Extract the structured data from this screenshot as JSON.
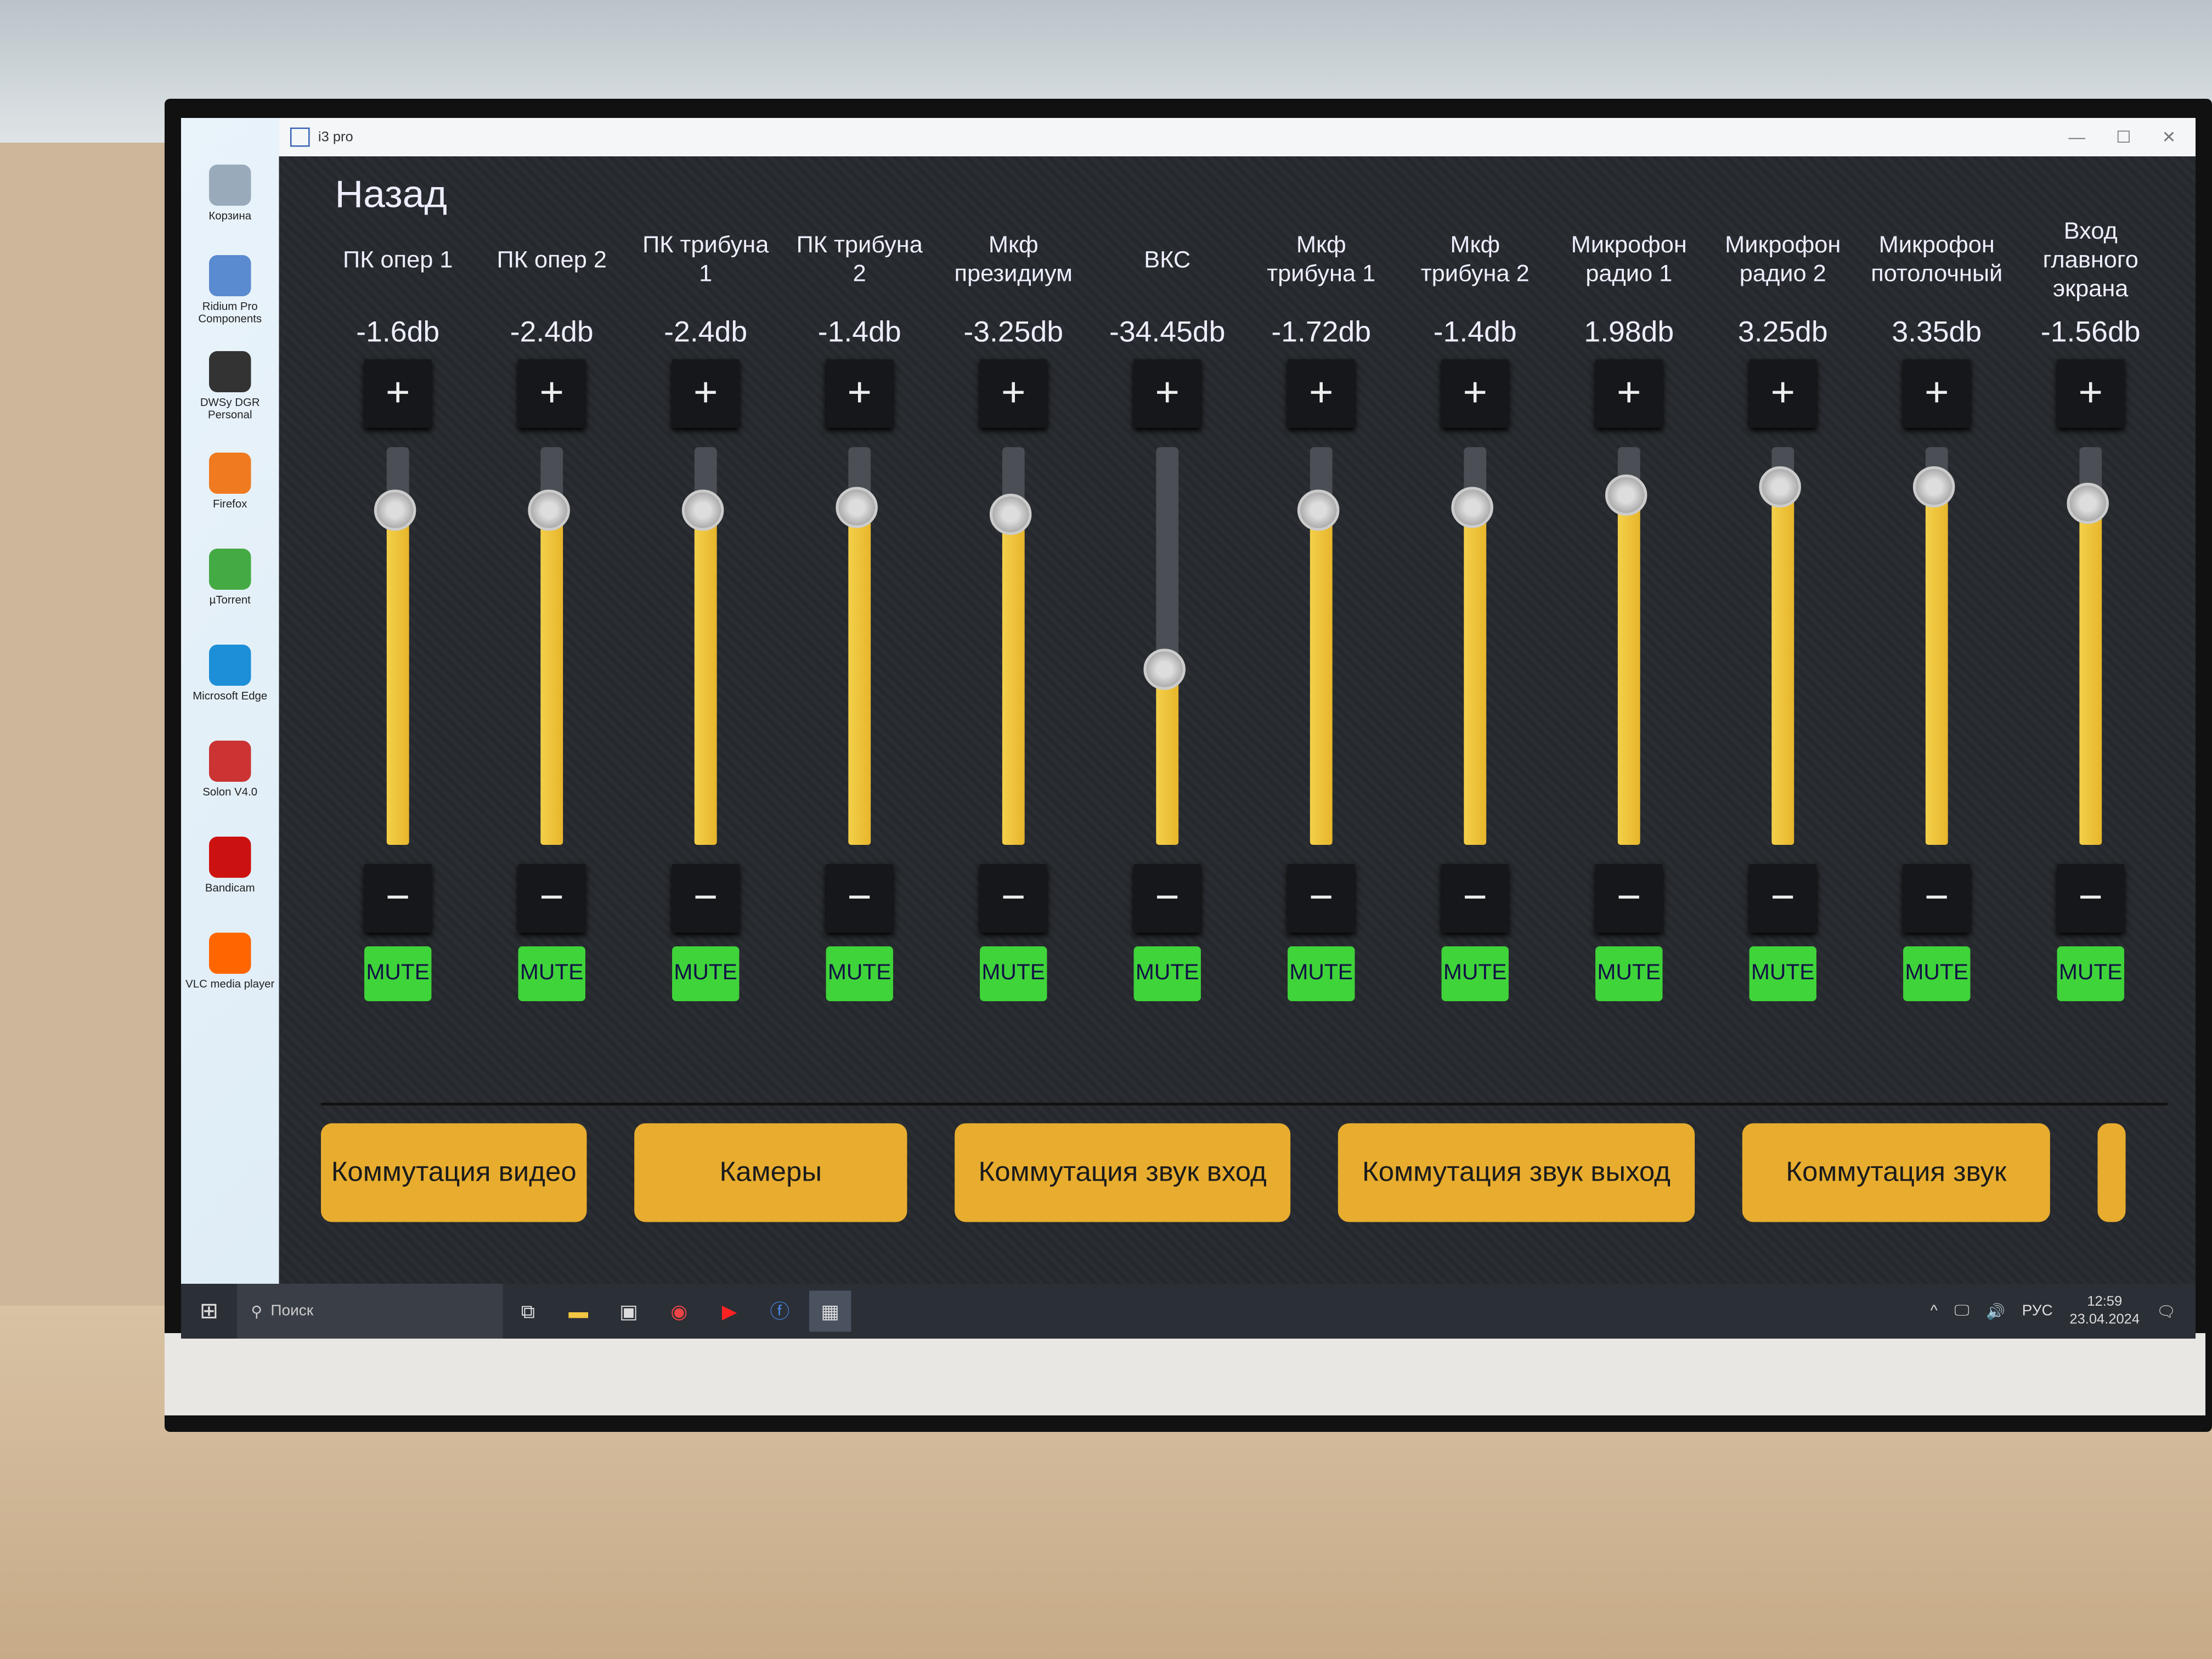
{
  "window": {
    "title": "i3 pro"
  },
  "app": {
    "back_label": "Назад",
    "channels": [
      {
        "label": "ПК опер 1",
        "value": "-1.6db",
        "level": 0.84
      },
      {
        "label": "ПК опер 2",
        "value": "-2.4db",
        "level": 0.84
      },
      {
        "label": "ПК трибуна 1",
        "value": "-2.4db",
        "level": 0.84
      },
      {
        "label": "ПК трибуна 2",
        "value": "-1.4db",
        "level": 0.85
      },
      {
        "label": "Мкф президиум",
        "value": "-3.25db",
        "level": 0.83
      },
      {
        "label": "ВКС",
        "value": "-34.45db",
        "level": 0.44
      },
      {
        "label": "Мкф трибуна 1",
        "value": "-1.72db",
        "level": 0.84
      },
      {
        "label": "Мкф трибуна 2",
        "value": "-1.4db",
        "level": 0.85
      },
      {
        "label": "Микрофон радио 1",
        "value": "1.98db",
        "level": 0.88
      },
      {
        "label": "Микрофон радио 2",
        "value": "3.25db",
        "level": 0.9
      },
      {
        "label": "Микрофон потолочный",
        "value": "3.35db",
        "level": 0.9
      },
      {
        "label": "Вход главного экрана",
        "value": "-1.56db",
        "level": 0.86
      }
    ],
    "plus_label": "+",
    "minus_label": "−",
    "mute_label": "MUTE",
    "nav_buttons": [
      "Коммутация видео",
      "Камеры",
      "Коммутация звук вход",
      "Коммутация звук выход",
      "Коммутация звук"
    ],
    "colors": {
      "fader": "#f0c53c",
      "mute": "#3fd43a",
      "nav": "#e8ad2f",
      "background": "#272a2e"
    }
  },
  "desktop_icons": [
    "Корзина",
    "Ridium Pro Components",
    "DWSy DGR Personal",
    "Firefox",
    "µTorrent",
    "Microsoft Edge",
    "Solon V4.0",
    "Bandicam",
    "VLC media player"
  ],
  "taskbar": {
    "search_placeholder": "Поиск",
    "language": "РУС",
    "time": "12:59",
    "date": "23.04.2024"
  }
}
